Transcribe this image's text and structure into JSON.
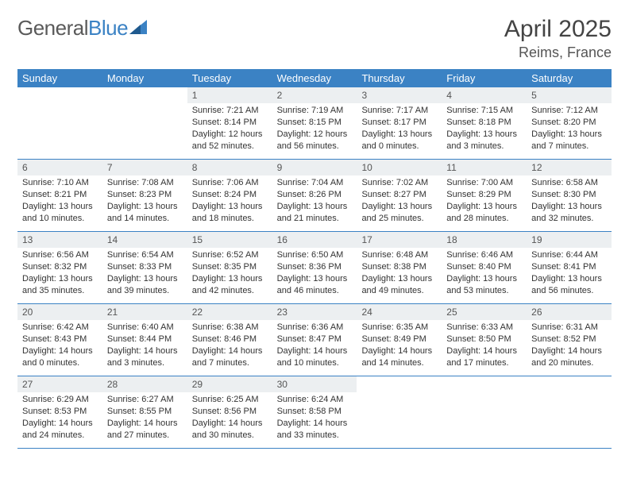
{
  "logo": {
    "text1": "General",
    "text2": "Blue"
  },
  "header": {
    "month_title": "April 2025",
    "location": "Reims, France"
  },
  "colors": {
    "header_bar": "#3b82c4",
    "daynum_bg": "#eceff1",
    "text": "#333333",
    "logo_gray": "#5a5a5a",
    "logo_blue": "#3b82c4"
  },
  "day_names": [
    "Sunday",
    "Monday",
    "Tuesday",
    "Wednesday",
    "Thursday",
    "Friday",
    "Saturday"
  ],
  "weeks": [
    [
      null,
      null,
      {
        "n": "1",
        "sr": "Sunrise: 7:21 AM",
        "ss": "Sunset: 8:14 PM",
        "d1": "Daylight: 12 hours",
        "d2": "and 52 minutes."
      },
      {
        "n": "2",
        "sr": "Sunrise: 7:19 AM",
        "ss": "Sunset: 8:15 PM",
        "d1": "Daylight: 12 hours",
        "d2": "and 56 minutes."
      },
      {
        "n": "3",
        "sr": "Sunrise: 7:17 AM",
        "ss": "Sunset: 8:17 PM",
        "d1": "Daylight: 13 hours",
        "d2": "and 0 minutes."
      },
      {
        "n": "4",
        "sr": "Sunrise: 7:15 AM",
        "ss": "Sunset: 8:18 PM",
        "d1": "Daylight: 13 hours",
        "d2": "and 3 minutes."
      },
      {
        "n": "5",
        "sr": "Sunrise: 7:12 AM",
        "ss": "Sunset: 8:20 PM",
        "d1": "Daylight: 13 hours",
        "d2": "and 7 minutes."
      }
    ],
    [
      {
        "n": "6",
        "sr": "Sunrise: 7:10 AM",
        "ss": "Sunset: 8:21 PM",
        "d1": "Daylight: 13 hours",
        "d2": "and 10 minutes."
      },
      {
        "n": "7",
        "sr": "Sunrise: 7:08 AM",
        "ss": "Sunset: 8:23 PM",
        "d1": "Daylight: 13 hours",
        "d2": "and 14 minutes."
      },
      {
        "n": "8",
        "sr": "Sunrise: 7:06 AM",
        "ss": "Sunset: 8:24 PM",
        "d1": "Daylight: 13 hours",
        "d2": "and 18 minutes."
      },
      {
        "n": "9",
        "sr": "Sunrise: 7:04 AM",
        "ss": "Sunset: 8:26 PM",
        "d1": "Daylight: 13 hours",
        "d2": "and 21 minutes."
      },
      {
        "n": "10",
        "sr": "Sunrise: 7:02 AM",
        "ss": "Sunset: 8:27 PM",
        "d1": "Daylight: 13 hours",
        "d2": "and 25 minutes."
      },
      {
        "n": "11",
        "sr": "Sunrise: 7:00 AM",
        "ss": "Sunset: 8:29 PM",
        "d1": "Daylight: 13 hours",
        "d2": "and 28 minutes."
      },
      {
        "n": "12",
        "sr": "Sunrise: 6:58 AM",
        "ss": "Sunset: 8:30 PM",
        "d1": "Daylight: 13 hours",
        "d2": "and 32 minutes."
      }
    ],
    [
      {
        "n": "13",
        "sr": "Sunrise: 6:56 AM",
        "ss": "Sunset: 8:32 PM",
        "d1": "Daylight: 13 hours",
        "d2": "and 35 minutes."
      },
      {
        "n": "14",
        "sr": "Sunrise: 6:54 AM",
        "ss": "Sunset: 8:33 PM",
        "d1": "Daylight: 13 hours",
        "d2": "and 39 minutes."
      },
      {
        "n": "15",
        "sr": "Sunrise: 6:52 AM",
        "ss": "Sunset: 8:35 PM",
        "d1": "Daylight: 13 hours",
        "d2": "and 42 minutes."
      },
      {
        "n": "16",
        "sr": "Sunrise: 6:50 AM",
        "ss": "Sunset: 8:36 PM",
        "d1": "Daylight: 13 hours",
        "d2": "and 46 minutes."
      },
      {
        "n": "17",
        "sr": "Sunrise: 6:48 AM",
        "ss": "Sunset: 8:38 PM",
        "d1": "Daylight: 13 hours",
        "d2": "and 49 minutes."
      },
      {
        "n": "18",
        "sr": "Sunrise: 6:46 AM",
        "ss": "Sunset: 8:40 PM",
        "d1": "Daylight: 13 hours",
        "d2": "and 53 minutes."
      },
      {
        "n": "19",
        "sr": "Sunrise: 6:44 AM",
        "ss": "Sunset: 8:41 PM",
        "d1": "Daylight: 13 hours",
        "d2": "and 56 minutes."
      }
    ],
    [
      {
        "n": "20",
        "sr": "Sunrise: 6:42 AM",
        "ss": "Sunset: 8:43 PM",
        "d1": "Daylight: 14 hours",
        "d2": "and 0 minutes."
      },
      {
        "n": "21",
        "sr": "Sunrise: 6:40 AM",
        "ss": "Sunset: 8:44 PM",
        "d1": "Daylight: 14 hours",
        "d2": "and 3 minutes."
      },
      {
        "n": "22",
        "sr": "Sunrise: 6:38 AM",
        "ss": "Sunset: 8:46 PM",
        "d1": "Daylight: 14 hours",
        "d2": "and 7 minutes."
      },
      {
        "n": "23",
        "sr": "Sunrise: 6:36 AM",
        "ss": "Sunset: 8:47 PM",
        "d1": "Daylight: 14 hours",
        "d2": "and 10 minutes."
      },
      {
        "n": "24",
        "sr": "Sunrise: 6:35 AM",
        "ss": "Sunset: 8:49 PM",
        "d1": "Daylight: 14 hours",
        "d2": "and 14 minutes."
      },
      {
        "n": "25",
        "sr": "Sunrise: 6:33 AM",
        "ss": "Sunset: 8:50 PM",
        "d1": "Daylight: 14 hours",
        "d2": "and 17 minutes."
      },
      {
        "n": "26",
        "sr": "Sunrise: 6:31 AM",
        "ss": "Sunset: 8:52 PM",
        "d1": "Daylight: 14 hours",
        "d2": "and 20 minutes."
      }
    ],
    [
      {
        "n": "27",
        "sr": "Sunrise: 6:29 AM",
        "ss": "Sunset: 8:53 PM",
        "d1": "Daylight: 14 hours",
        "d2": "and 24 minutes."
      },
      {
        "n": "28",
        "sr": "Sunrise: 6:27 AM",
        "ss": "Sunset: 8:55 PM",
        "d1": "Daylight: 14 hours",
        "d2": "and 27 minutes."
      },
      {
        "n": "29",
        "sr": "Sunrise: 6:25 AM",
        "ss": "Sunset: 8:56 PM",
        "d1": "Daylight: 14 hours",
        "d2": "and 30 minutes."
      },
      {
        "n": "30",
        "sr": "Sunrise: 6:24 AM",
        "ss": "Sunset: 8:58 PM",
        "d1": "Daylight: 14 hours",
        "d2": "and 33 minutes."
      },
      null,
      null,
      null
    ]
  ]
}
